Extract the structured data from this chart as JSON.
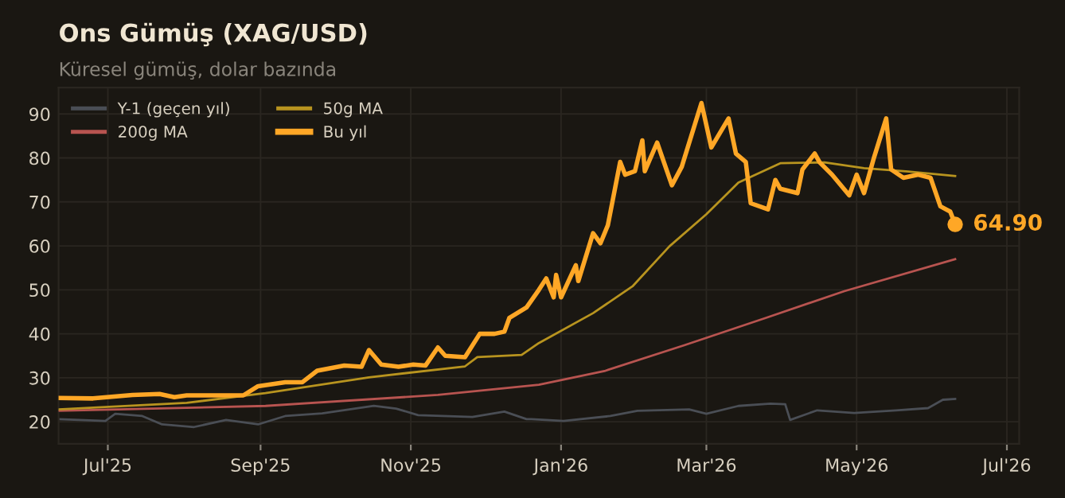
{
  "chart_data": {
    "type": "line",
    "title": "Ons Gümüş (XAG/USD)",
    "subtitle": "Küresel gümüş, dolar bazında",
    "xlim": [
      "2025-06-11",
      "2026-07-06"
    ],
    "ylim": [
      15,
      96
    ],
    "xticks": [
      {
        "value": "2025-07-01",
        "label": "Jul'25"
      },
      {
        "value": "2025-09-01",
        "label": "Sep'25"
      },
      {
        "value": "2025-11-01",
        "label": "Nov'25"
      },
      {
        "value": "2026-01-01",
        "label": "Jan'26"
      },
      {
        "value": "2026-03-01",
        "label": "Mar'26"
      },
      {
        "value": "2026-05-01",
        "label": "May'26"
      },
      {
        "value": "2026-07-01",
        "label": "Jul'26"
      }
    ],
    "yticks": [
      20,
      30,
      40,
      50,
      60,
      70,
      80,
      90
    ],
    "grid": true,
    "legend": "top left",
    "marker": "none",
    "line_style": "solid",
    "annotations": [
      {
        "text": "64.90",
        "x": "2026-06-10",
        "y": 64.9
      }
    ],
    "series": [
      {
        "name": "Y-1 (geçen yıl)",
        "color": "#4a4e55",
        "x": [
          "2025-06-11",
          "2025-06-30",
          "2025-07-04",
          "2025-07-15",
          "2025-07-23",
          "2025-08-05",
          "2025-08-18",
          "2025-08-31",
          "2025-09-11",
          "2025-09-26",
          "2025-10-17",
          "2025-10-26",
          "2025-11-04",
          "2025-11-26",
          "2025-12-09",
          "2025-12-18",
          "2025-12-20",
          "2026-01-02",
          "2026-01-21",
          "2026-02-01",
          "2026-02-22",
          "2026-03-01",
          "2026-03-14",
          "2026-03-27",
          "2026-04-02",
          "2026-04-04",
          "2026-04-15",
          "2026-04-30",
          "2026-05-17",
          "2026-05-30",
          "2026-06-05",
          "2026-06-10"
        ],
        "values": [
          20.6,
          20.2,
          21.8,
          21.3,
          19.4,
          18.8,
          20.4,
          19.4,
          21.3,
          21.9,
          23.6,
          23.0,
          21.5,
          21.1,
          22.3,
          20.6,
          20.6,
          20.2,
          21.3,
          22.5,
          22.8,
          21.8,
          23.6,
          24.1,
          24.0,
          20.4,
          22.6,
          22.0,
          22.6,
          23.1,
          25.0,
          25.2
        ]
      },
      {
        "name": "200g MA",
        "color": "#b85450",
        "x": [
          "2025-06-11",
          "2025-09-03",
          "2025-11-12",
          "2025-12-23",
          "2026-01-19",
          "2026-02-20",
          "2026-03-25",
          "2026-04-26",
          "2026-06-10"
        ],
        "values": [
          22.5,
          23.6,
          26.1,
          28.4,
          31.6,
          37.4,
          43.6,
          49.7,
          57.0
        ]
      },
      {
        "name": "50g MA",
        "color": "#b8941f",
        "x": [
          "2025-06-11",
          "2025-08-02",
          "2025-09-03",
          "2025-10-15",
          "2025-11-23",
          "2025-11-28",
          "2025-12-16",
          "2025-12-23",
          "2026-01-14",
          "2026-01-30",
          "2026-02-14",
          "2026-03-01",
          "2026-03-14",
          "2026-03-31",
          "2026-04-18",
          "2026-05-04",
          "2026-05-22",
          "2026-06-10"
        ],
        "values": [
          22.8,
          24.3,
          26.5,
          30.1,
          32.6,
          34.7,
          35.2,
          37.9,
          44.7,
          50.8,
          59.9,
          67.2,
          74.4,
          78.8,
          79.0,
          77.7,
          76.9,
          75.9
        ]
      },
      {
        "name": "Bu yıl",
        "color": "#ffa726",
        "x": [
          "2025-06-11",
          "2025-06-25",
          "2025-07-11",
          "2025-07-22",
          "2025-07-28",
          "2025-08-02",
          "2025-08-17",
          "2025-08-25",
          "2025-08-31",
          "2025-09-11",
          "2025-09-18",
          "2025-09-24",
          "2025-10-05",
          "2025-10-12",
          "2025-10-15",
          "2025-10-20",
          "2025-10-27",
          "2025-11-02",
          "2025-11-07",
          "2025-11-12",
          "2025-11-15",
          "2025-11-23",
          "2025-11-29",
          "2025-12-05",
          "2025-12-09",
          "2025-12-11",
          "2025-12-18",
          "2025-12-23",
          "2025-12-26",
          "2025-12-29",
          "2025-12-30",
          "2026-01-01",
          "2026-01-07",
          "2026-01-08",
          "2026-01-14",
          "2026-01-17",
          "2026-01-20",
          "2026-01-25",
          "2026-01-27",
          "2026-01-31",
          "2026-02-03",
          "2026-02-04",
          "2026-02-09",
          "2026-02-15",
          "2026-02-19",
          "2026-02-27",
          "2026-03-03",
          "2026-03-10",
          "2026-03-13",
          "2026-03-17",
          "2026-03-19",
          "2026-03-26",
          "2026-03-29",
          "2026-03-31",
          "2026-04-07",
          "2026-04-09",
          "2026-04-14",
          "2026-04-16",
          "2026-04-21",
          "2026-04-28",
          "2026-05-01",
          "2026-05-04",
          "2026-05-08",
          "2026-05-13",
          "2026-05-15",
          "2026-05-20",
          "2026-05-26",
          "2026-05-31",
          "2026-06-04",
          "2026-06-08",
          "2026-06-10"
        ],
        "values": [
          25.4,
          25.3,
          26.1,
          26.3,
          25.6,
          26.0,
          26.0,
          26.0,
          28.1,
          29.0,
          29.0,
          31.6,
          32.8,
          32.5,
          36.3,
          33.0,
          32.5,
          33.0,
          32.8,
          36.9,
          35.0,
          34.7,
          40.0,
          40.0,
          40.5,
          43.6,
          46.0,
          50.0,
          52.6,
          48.3,
          53.4,
          48.3,
          55.6,
          52.0,
          62.9,
          60.6,
          64.7,
          79.1,
          76.2,
          77.0,
          84.0,
          77.0,
          83.5,
          73.8,
          78.0,
          92.5,
          82.4,
          89.0,
          81.0,
          79.1,
          69.7,
          68.3,
          75.0,
          73.0,
          72.0,
          77.4,
          81.0,
          79.0,
          76.2,
          71.5,
          76.2,
          72.0,
          80.0,
          89.0,
          77.4,
          75.5,
          76.2,
          75.5,
          69.0,
          67.8,
          64.9
        ]
      }
    ]
  }
}
